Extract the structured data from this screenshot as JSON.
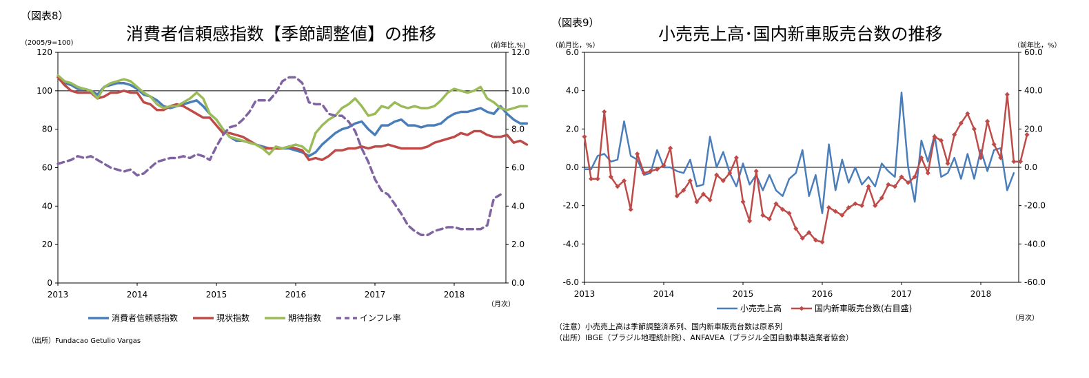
{
  "figures": [
    {
      "label": "（図表8）",
      "title": "消費者信頼感指数【季節調整値】の推移",
      "left_unit": "(2005/9=100)",
      "right_unit": "(前年比,%)",
      "x_unit": "（月次）",
      "source": "（出所）Fundacao Getulio Vargas",
      "notes": []
    },
    {
      "label": "（図表9）",
      "title": "小売売上高･国内新車販売台数の推移",
      "left_unit": "（前月比，%）",
      "right_unit": "（前年比，%）",
      "x_unit": "（月次）",
      "source": "",
      "notes": [
        "（注意）小売売上高は季節調整済系列、国内新車販売台数は原系列",
        "（出所）IBGE（ブラジル地理統計院）、ANFAVEA（ブラジル全国自動車製造業者協会）"
      ]
    }
  ],
  "chart_data": [
    {
      "type": "line",
      "title": "消費者信頼感指数【季節調整値】の推移",
      "x_start": "2013-01",
      "x_ticks": [
        "2013",
        "2014",
        "2015",
        "2016",
        "2017",
        "2018"
      ],
      "y_left": {
        "range": [
          0,
          120
        ],
        "ticks": [
          "0",
          "20",
          "40",
          "60",
          "80",
          "100",
          "120"
        ]
      },
      "y_right": {
        "range": [
          0,
          12
        ],
        "ticks": [
          "0.0",
          "2.0",
          "4.0",
          "6.0",
          "8.0",
          "10.0",
          "12.0"
        ]
      },
      "reference_line": {
        "axis": "left",
        "value": 100
      },
      "series": [
        {
          "name": "消費者信頼感指数",
          "axis": "left",
          "color": "#4a7ebb",
          "style": "solid",
          "values": [
            107,
            104,
            103,
            101,
            101,
            100,
            98,
            102,
            103,
            104,
            104,
            103,
            101,
            98,
            97,
            95,
            92,
            91,
            92,
            93,
            94,
            95,
            92,
            88,
            85,
            80,
            76,
            74,
            74,
            73,
            72,
            71,
            70,
            70,
            70,
            70,
            69,
            68,
            66,
            68,
            72,
            75,
            78,
            80,
            81,
            83,
            84,
            80,
            77,
            82,
            82,
            84,
            85,
            82,
            82,
            81,
            82,
            82,
            83,
            86,
            88,
            89,
            89,
            90,
            91,
            89,
            88,
            92,
            88,
            85,
            83,
            83
          ]
        },
        {
          "name": "現状指数",
          "axis": "left",
          "color": "#be4b48",
          "style": "solid",
          "values": [
            107,
            103,
            100,
            99,
            99,
            99,
            96,
            97,
            99,
            99,
            100,
            99,
            99,
            94,
            93,
            90,
            90,
            92,
            93,
            92,
            90,
            88,
            86,
            86,
            82,
            78,
            78,
            77,
            76,
            74,
            72,
            70,
            70,
            70,
            70,
            71,
            70,
            69,
            64,
            65,
            64,
            66,
            69,
            69,
            70,
            70,
            71,
            70,
            71,
            71,
            72,
            71,
            70,
            70,
            70,
            70,
            71,
            73,
            74,
            75,
            76,
            78,
            77,
            79,
            79,
            77,
            76,
            76,
            77,
            73,
            74,
            72
          ]
        },
        {
          "name": "期待指数",
          "axis": "left",
          "color": "#9bbb59",
          "style": "solid",
          "values": [
            108,
            105,
            104,
            102,
            101,
            100,
            96,
            102,
            104,
            105,
            106,
            105,
            102,
            99,
            97,
            93,
            91,
            92,
            92,
            94,
            96,
            99,
            96,
            88,
            85,
            80,
            76,
            75,
            74,
            73,
            72,
            70,
            67,
            71,
            70,
            71,
            72,
            71,
            68,
            78,
            82,
            85,
            87,
            91,
            93,
            96,
            92,
            87,
            88,
            92,
            91,
            94,
            92,
            91,
            92,
            91,
            91,
            92,
            95,
            99,
            101,
            100,
            99,
            100,
            102,
            96,
            94,
            91,
            90,
            91,
            92,
            92
          ]
        },
        {
          "name": "インフレ率",
          "axis": "right",
          "color": "#8064a2",
          "style": "dashed",
          "values": [
            6.2,
            6.3,
            6.4,
            6.6,
            6.5,
            6.6,
            6.4,
            6.2,
            6.0,
            5.9,
            5.8,
            5.9,
            5.6,
            5.7,
            6.0,
            6.3,
            6.4,
            6.5,
            6.5,
            6.6,
            6.5,
            6.7,
            6.6,
            6.4,
            7.1,
            7.7,
            8.1,
            8.2,
            8.5,
            8.9,
            9.5,
            9.5,
            9.5,
            9.9,
            10.5,
            10.7,
            10.7,
            10.4,
            9.4,
            9.3,
            9.3,
            8.8,
            8.7,
            8.7,
            8.4,
            7.9,
            7.0,
            6.3,
            5.4,
            4.8,
            4.6,
            4.1,
            3.6,
            3.0,
            2.7,
            2.5,
            2.5,
            2.7,
            2.8,
            2.9,
            2.9,
            2.8,
            2.8,
            2.8,
            2.8,
            3.0,
            4.4,
            4.6
          ]
        }
      ],
      "legend": [
        "消費者信頼感指数",
        "現状指数",
        "期待指数",
        "インフレ率"
      ],
      "legend_position": "bottom"
    },
    {
      "type": "line",
      "title": "小売売上高･国内新車販売台数の推移",
      "x_start": "2013-01",
      "x_ticks": [
        "2013",
        "2014",
        "2015",
        "2016",
        "2017",
        "2018"
      ],
      "y_left": {
        "range": [
          -6,
          6
        ],
        "ticks": [
          "-6.0",
          "-4.0",
          "-2.0",
          "0.0",
          "2.0",
          "4.0",
          "6.0"
        ]
      },
      "y_right": {
        "range": [
          -60,
          60
        ],
        "ticks": [
          "-60.0",
          "-40.0",
          "-20.0",
          "0.0",
          "20.0",
          "40.0",
          "60.0"
        ]
      },
      "reference_line": {
        "axis": "left",
        "value": 0
      },
      "series": [
        {
          "name": "小売売上高",
          "axis": "left",
          "color": "#4a7ebb",
          "style": "solid",
          "marker": false,
          "values": [
            -0.1,
            -0.1,
            0.6,
            0.7,
            0.3,
            0.4,
            2.4,
            0.6,
            0.4,
            -0.4,
            -0.3,
            0.9,
            0.0,
            0.0,
            -0.2,
            -0.3,
            0.4,
            -1.0,
            -0.9,
            1.6,
            0.0,
            0.8,
            -0.3,
            -1.0,
            0.2,
            -0.9,
            -0.4,
            -1.2,
            -0.4,
            -1.2,
            -1.5,
            -0.6,
            -0.3,
            0.9,
            -1.5,
            -0.4,
            -2.4,
            1.2,
            -1.2,
            0.4,
            -0.8,
            0.0,
            -0.9,
            -0.5,
            -1.0,
            0.2,
            -0.2,
            -0.5,
            3.9,
            0.0,
            -1.8,
            1.4,
            0.3,
            1.7,
            -0.5,
            -0.3,
            0.5,
            -0.6,
            0.7,
            -0.6,
            0.9,
            -0.2,
            0.9,
            1.0,
            -1.2,
            -0.3
          ]
        },
        {
          "name": "国内新車販売台数(右目盛)",
          "axis": "right",
          "color": "#be4b48",
          "style": "solid",
          "marker": true,
          "values": [
            16,
            -6,
            -6,
            29,
            -5,
            -10,
            -7,
            -22,
            7,
            -3,
            -2,
            -1,
            1,
            10,
            -15,
            -12,
            -7,
            -18,
            -14,
            -17,
            -4,
            -7,
            -3,
            5,
            -18,
            -28,
            -2,
            -25,
            -27,
            -19,
            -22,
            -24,
            -32,
            -37,
            -34,
            -38,
            -39,
            -21,
            -23,
            -25,
            -21,
            -19,
            -20,
            -10,
            -20,
            -16,
            -9,
            -10,
            -5,
            -8,
            -5,
            5,
            -3,
            16,
            14,
            2,
            17,
            23,
            28,
            20,
            5,
            24,
            12,
            5,
            38,
            3,
            3,
            17
          ]
        }
      ],
      "legend": [
        "小売売上高",
        "国内新車販売台数(右目盛)"
      ],
      "legend_position": "bottom"
    }
  ]
}
